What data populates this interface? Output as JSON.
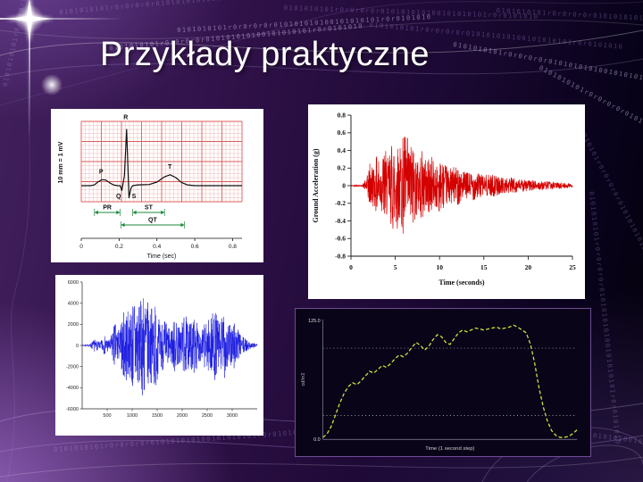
{
  "slide": {
    "title": "Przykłady praktyczne",
    "texture": "0101010101r0r0r0r0r010101010100101010101r0r0101010",
    "colors": {
      "background_purple": "#31124a",
      "title_text": "#ffffff",
      "ecg_trace": "#111111",
      "seismogram_trace": "#d40000",
      "audio_trace": "#1a1ae0",
      "luminance_trace": "#d0e23e"
    }
  },
  "chart_data": [
    {
      "id": "ecg",
      "type": "line",
      "xlabel": "Time (sec)",
      "ylabel": "10 mm = 1 mV",
      "x_ticks": [
        "0",
        "0.2",
        "0.4",
        "0.6",
        "0.8"
      ],
      "xlim": [
        0,
        0.85
      ],
      "line_color": "#111111",
      "grid_minor_color": "#f2b6b6",
      "grid_major_color": "#e25b5b",
      "interval_color": "#1e8a3c",
      "wave_labels": [
        {
          "l": "P",
          "t": 0.105,
          "mv": 0.3
        },
        {
          "l": "R",
          "t": 0.235,
          "mv": 1.66
        },
        {
          "l": "T",
          "t": 0.468,
          "mv": 0.42
        },
        {
          "l": "Q",
          "t": 0.197,
          "mv": -0.31
        },
        {
          "l": "S",
          "t": 0.278,
          "mv": -0.31
        }
      ],
      "intervals": [
        {
          "label": "PR",
          "from": 0.07,
          "to": 0.205,
          "level": 1
        },
        {
          "label": "ST",
          "from": 0.272,
          "to": 0.44,
          "level": 1
        },
        {
          "label": "QT",
          "from": 0.21,
          "to": 0.545,
          "level": 2
        }
      ],
      "points": [
        [
          0,
          0
        ],
        [
          0.05,
          0
        ],
        [
          0.07,
          0.02
        ],
        [
          0.09,
          0.1
        ],
        [
          0.11,
          0.15
        ],
        [
          0.13,
          0.14
        ],
        [
          0.15,
          0.07
        ],
        [
          0.17,
          0.02
        ],
        [
          0.19,
          0
        ],
        [
          0.205,
          0
        ],
        [
          0.215,
          -0.12
        ],
        [
          0.228,
          0.25
        ],
        [
          0.24,
          1.4
        ],
        [
          0.252,
          -0.3
        ],
        [
          0.263,
          -0.06
        ],
        [
          0.272,
          0
        ],
        [
          0.3,
          0.02
        ],
        [
          0.36,
          0.03
        ],
        [
          0.4,
          0.09
        ],
        [
          0.44,
          0.22
        ],
        [
          0.47,
          0.27
        ],
        [
          0.5,
          0.2
        ],
        [
          0.53,
          0.08
        ],
        [
          0.56,
          0.02
        ],
        [
          0.6,
          0
        ],
        [
          0.85,
          0
        ]
      ]
    },
    {
      "id": "seismogram",
      "type": "line",
      "xlabel": "Time (seconds)",
      "ylabel": "Ground Acceleration (g)",
      "xlim": [
        0,
        25
      ],
      "ylim": [
        -0.8,
        0.8
      ],
      "x_ticks": [
        0,
        5,
        10,
        15,
        20,
        25
      ],
      "y_ticks": [
        0.8,
        0.6,
        0.4,
        0.2,
        0,
        -0.2,
        -0.4,
        -0.6,
        -0.8
      ],
      "line_color": "#d40000",
      "seed": 42,
      "n_points": 1200,
      "envelope": [
        [
          0,
          0.004
        ],
        [
          1.3,
          0.01
        ],
        [
          1.8,
          0.1
        ],
        [
          2.2,
          0.3
        ],
        [
          2.6,
          0.22
        ],
        [
          3,
          0.38
        ],
        [
          3.4,
          0.28
        ],
        [
          3.8,
          0.45
        ],
        [
          4.2,
          0.3
        ],
        [
          4.6,
          0.5
        ],
        [
          5,
          0.62
        ],
        [
          5.4,
          0.4
        ],
        [
          5.8,
          0.55
        ],
        [
          6.2,
          0.65
        ],
        [
          6.6,
          0.45
        ],
        [
          7,
          0.5
        ],
        [
          7.5,
          0.32
        ],
        [
          8,
          0.4
        ],
        [
          8.5,
          0.3
        ],
        [
          9,
          0.35
        ],
        [
          9.5,
          0.25
        ],
        [
          10,
          0.3
        ],
        [
          11,
          0.2
        ],
        [
          12,
          0.22
        ],
        [
          13,
          0.15
        ],
        [
          14,
          0.17
        ],
        [
          15,
          0.12
        ],
        [
          16,
          0.13
        ],
        [
          17,
          0.09
        ],
        [
          18,
          0.1
        ],
        [
          19,
          0.07
        ],
        [
          20,
          0.07
        ],
        [
          21,
          0.05
        ],
        [
          22,
          0.05
        ],
        [
          23,
          0.04
        ],
        [
          24,
          0.03
        ],
        [
          25,
          0.025
        ]
      ]
    },
    {
      "id": "audio-waveform",
      "type": "line",
      "xlabel": "",
      "ylabel": "",
      "xlim": [
        0,
        3500
      ],
      "ylim": [
        -6000,
        6000
      ],
      "x_ticks": [
        500,
        1000,
        1500,
        2000,
        2500,
        3000
      ],
      "y_ticks": [
        6000,
        4000,
        2000,
        0,
        -2000,
        -4000,
        -6000
      ],
      "line_color": "#1a1ae0",
      "seed": 7,
      "n_points": 1100,
      "envelope": [
        [
          0,
          80
        ],
        [
          150,
          120
        ],
        [
          250,
          600
        ],
        [
          350,
          300
        ],
        [
          450,
          900
        ],
        [
          550,
          500
        ],
        [
          650,
          2200
        ],
        [
          750,
          1400
        ],
        [
          850,
          3800
        ],
        [
          950,
          3000
        ],
        [
          1050,
          5200
        ],
        [
          1150,
          3800
        ],
        [
          1250,
          5600
        ],
        [
          1350,
          3200
        ],
        [
          1450,
          4400
        ],
        [
          1550,
          2200
        ],
        [
          1650,
          2600
        ],
        [
          1750,
          1600
        ],
        [
          1850,
          2600
        ],
        [
          1950,
          1800
        ],
        [
          2050,
          3000
        ],
        [
          2150,
          2100
        ],
        [
          2250,
          2700
        ],
        [
          2350,
          1500
        ],
        [
          2450,
          2100
        ],
        [
          2550,
          2700
        ],
        [
          2650,
          3300
        ],
        [
          2750,
          2400
        ],
        [
          2850,
          3100
        ],
        [
          2950,
          1900
        ],
        [
          3050,
          2500
        ],
        [
          3150,
          1100
        ],
        [
          3250,
          700
        ],
        [
          3350,
          350
        ],
        [
          3500,
          150
        ]
      ]
    },
    {
      "id": "luminance",
      "type": "line",
      "xlabel": "Time (1 second step)",
      "ylabel": "cd/m2",
      "y_tick_labels": [
        "125.0",
        "0.0"
      ],
      "xlim": [
        0,
        60
      ],
      "ylim": [
        0,
        125
      ],
      "line_color": "#d0e23e",
      "line_style": "dashed",
      "background": "#0a0418",
      "gridlines_y": [
        95,
        25
      ],
      "points": [
        [
          0,
          2
        ],
        [
          1,
          6
        ],
        [
          2,
          14
        ],
        [
          3,
          26
        ],
        [
          4,
          38
        ],
        [
          5,
          48
        ],
        [
          6,
          55
        ],
        [
          7,
          59
        ],
        [
          8,
          57
        ],
        [
          9,
          61
        ],
        [
          10,
          66
        ],
        [
          11,
          71
        ],
        [
          12,
          69
        ],
        [
          13,
          73
        ],
        [
          14,
          77
        ],
        [
          15,
          75
        ],
        [
          16,
          79
        ],
        [
          17,
          84
        ],
        [
          18,
          88
        ],
        [
          19,
          86
        ],
        [
          20,
          90
        ],
        [
          21,
          96
        ],
        [
          22,
          101
        ],
        [
          23,
          98
        ],
        [
          24,
          93
        ],
        [
          25,
          97
        ],
        [
          26,
          104
        ],
        [
          27,
          109
        ],
        [
          28,
          107
        ],
        [
          29,
          101
        ],
        [
          30,
          99
        ],
        [
          31,
          105
        ],
        [
          32,
          111
        ],
        [
          33,
          114
        ],
        [
          34,
          112
        ],
        [
          35,
          114
        ],
        [
          36,
          116
        ],
        [
          37,
          115
        ],
        [
          38,
          114
        ],
        [
          39,
          115
        ],
        [
          40,
          116
        ],
        [
          41,
          117
        ],
        [
          42,
          115
        ],
        [
          43,
          116
        ],
        [
          44,
          117
        ],
        [
          45,
          119
        ],
        [
          46,
          117
        ],
        [
          47,
          114
        ],
        [
          48,
          111
        ],
        [
          49,
          99
        ],
        [
          50,
          79
        ],
        [
          51,
          54
        ],
        [
          52,
          34
        ],
        [
          53,
          19
        ],
        [
          54,
          9
        ],
        [
          55,
          4
        ],
        [
          56,
          2
        ],
        [
          57,
          2
        ],
        [
          58,
          3
        ],
        [
          59,
          6
        ],
        [
          60,
          10
        ]
      ]
    }
  ]
}
